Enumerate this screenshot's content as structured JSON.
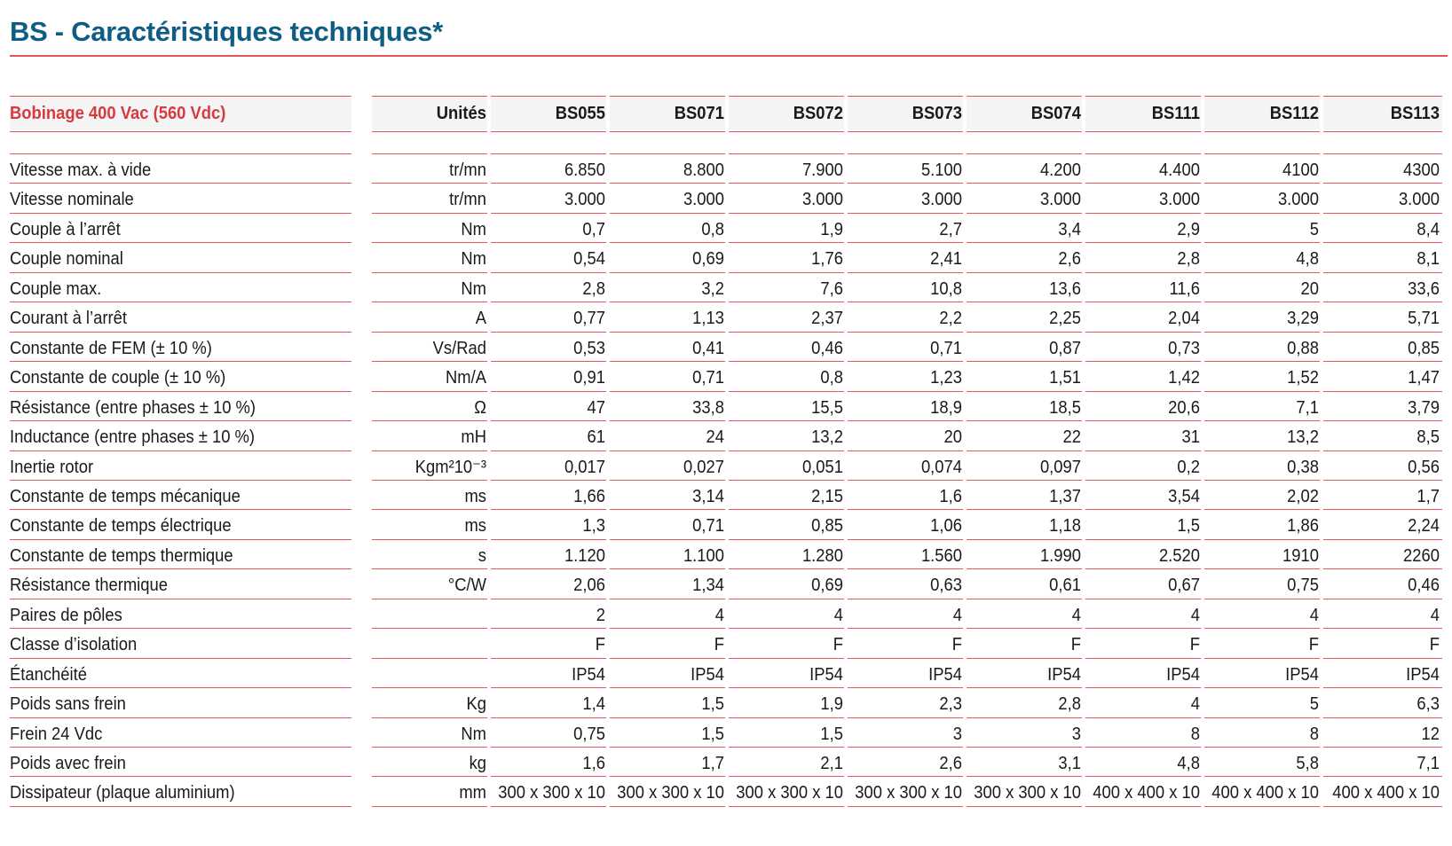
{
  "title": "BS - Caractéristiques techniques*",
  "header": {
    "label": "Bobinage 400 Vac (560 Vdc)",
    "unit": "Unités",
    "models": [
      "BS055",
      "BS071",
      "BS072",
      "BS073",
      "BS074",
      "BS111",
      "BS112",
      "BS113"
    ]
  },
  "rows": [
    {
      "label": "Vitesse max. à vide",
      "unit": "tr/mn",
      "values": [
        "6.850",
        "8.800",
        "7.900",
        "5.100",
        "4.200",
        "4.400",
        "4100",
        "4300"
      ]
    },
    {
      "label": "Vitesse nominale",
      "unit": "tr/mn",
      "values": [
        "3.000",
        "3.000",
        "3.000",
        "3.000",
        "3.000",
        "3.000",
        "3.000",
        "3.000"
      ]
    },
    {
      "label": "Couple à l’arrêt",
      "unit": "Nm",
      "values": [
        "0,7",
        "0,8",
        "1,9",
        "2,7",
        "3,4",
        "2,9",
        "5",
        "8,4"
      ]
    },
    {
      "label": "Couple nominal",
      "unit": "Nm",
      "values": [
        "0,54",
        "0,69",
        "1,76",
        "2,41",
        "2,6",
        "2,8",
        "4,8",
        "8,1"
      ]
    },
    {
      "label": "Couple max.",
      "unit": "Nm",
      "values": [
        "2,8",
        "3,2",
        "7,6",
        "10,8",
        "13,6",
        "11,6",
        "20",
        "33,6"
      ]
    },
    {
      "label": "Courant à l’arrêt",
      "unit": "A",
      "values": [
        "0,77",
        "1,13",
        "2,37",
        "2,2",
        "2,25",
        "2,04",
        "3,29",
        "5,71"
      ]
    },
    {
      "label": "Constante de FEM (± 10 %)",
      "unit": "Vs/Rad",
      "values": [
        "0,53",
        "0,41",
        "0,46",
        "0,71",
        "0,87",
        "0,73",
        "0,88",
        "0,85"
      ]
    },
    {
      "label": "Constante de couple (± 10 %)",
      "unit": "Nm/A",
      "values": [
        "0,91",
        "0,71",
        "0,8",
        "1,23",
        "1,51",
        "1,42",
        "1,52",
        "1,47"
      ]
    },
    {
      "label": "Résistance (entre phases ± 10 %)",
      "unit": "Ω",
      "values": [
        "47",
        "33,8",
        "15,5",
        "18,9",
        "18,5",
        "20,6",
        "7,1",
        "3,79"
      ]
    },
    {
      "label": "Inductance (entre phases ± 10 %)",
      "unit": "mH",
      "values": [
        "61",
        "24",
        "13,2",
        "20",
        "22",
        "31",
        "13,2",
        "8,5"
      ]
    },
    {
      "label": "Inertie rotor",
      "unit": "Kgm²10⁻³",
      "values": [
        "0,017",
        "0,027",
        "0,051",
        "0,074",
        "0,097",
        "0,2",
        "0,38",
        "0,56"
      ]
    },
    {
      "label": "Constante de temps mécanique",
      "unit": "ms",
      "values": [
        "1,66",
        "3,14",
        "2,15",
        "1,6",
        "1,37",
        "3,54",
        "2,02",
        "1,7"
      ]
    },
    {
      "label": "Constante de temps électrique",
      "unit": "ms",
      "values": [
        "1,3",
        "0,71",
        "0,85",
        "1,06",
        "1,18",
        "1,5",
        "1,86",
        "2,24"
      ]
    },
    {
      "label": "Constante de temps thermique",
      "unit": "s",
      "values": [
        "1.120",
        "1.100",
        "1.280",
        "1.560",
        "1.990",
        "2.520",
        "1910",
        "2260"
      ]
    },
    {
      "label": "Résistance thermique",
      "unit": "°C/W",
      "values": [
        "2,06",
        "1,34",
        "0,69",
        "0,63",
        "0,61",
        "0,67",
        "0,75",
        "0,46"
      ]
    },
    {
      "label": "Paires de pôles",
      "unit": "",
      "values": [
        "2",
        "4",
        "4",
        "4",
        "4",
        "4",
        "4",
        "4"
      ]
    },
    {
      "label": "Classe d’isolation",
      "unit": "",
      "values": [
        "F",
        "F",
        "F",
        "F",
        "F",
        "F",
        "F",
        "F"
      ]
    },
    {
      "label": "Étanchéité",
      "unit": "",
      "values": [
        "IP54",
        "IP54",
        "IP54",
        "IP54",
        "IP54",
        "IP54",
        "IP54",
        "IP54"
      ]
    },
    {
      "label": "Poids sans frein",
      "unit": "Kg",
      "values": [
        "1,4",
        "1,5",
        "1,9",
        "2,3",
        "2,8",
        "4",
        "5",
        "6,3"
      ]
    },
    {
      "label": "Frein 24 Vdc",
      "unit": "Nm",
      "values": [
        "0,75",
        "1,5",
        "1,5",
        "3",
        "3",
        "8",
        "8",
        "12"
      ]
    },
    {
      "label": "Poids avec frein",
      "unit": "kg",
      "values": [
        "1,6",
        "1,7",
        "2,1",
        "2,6",
        "3,1",
        "4,8",
        "5,8",
        "7,1"
      ]
    },
    {
      "label": "Dissipateur (plaque aluminium)",
      "unit": "mm",
      "values": [
        "300 x 300 x 10",
        "300 x 300 x 10",
        "300 x 300 x 10",
        "300 x 300 x 10",
        "300 x 300 x 10",
        "400 x 400 x 10",
        "400 x 400 x 10",
        "400 x 400 x 10"
      ]
    }
  ]
}
